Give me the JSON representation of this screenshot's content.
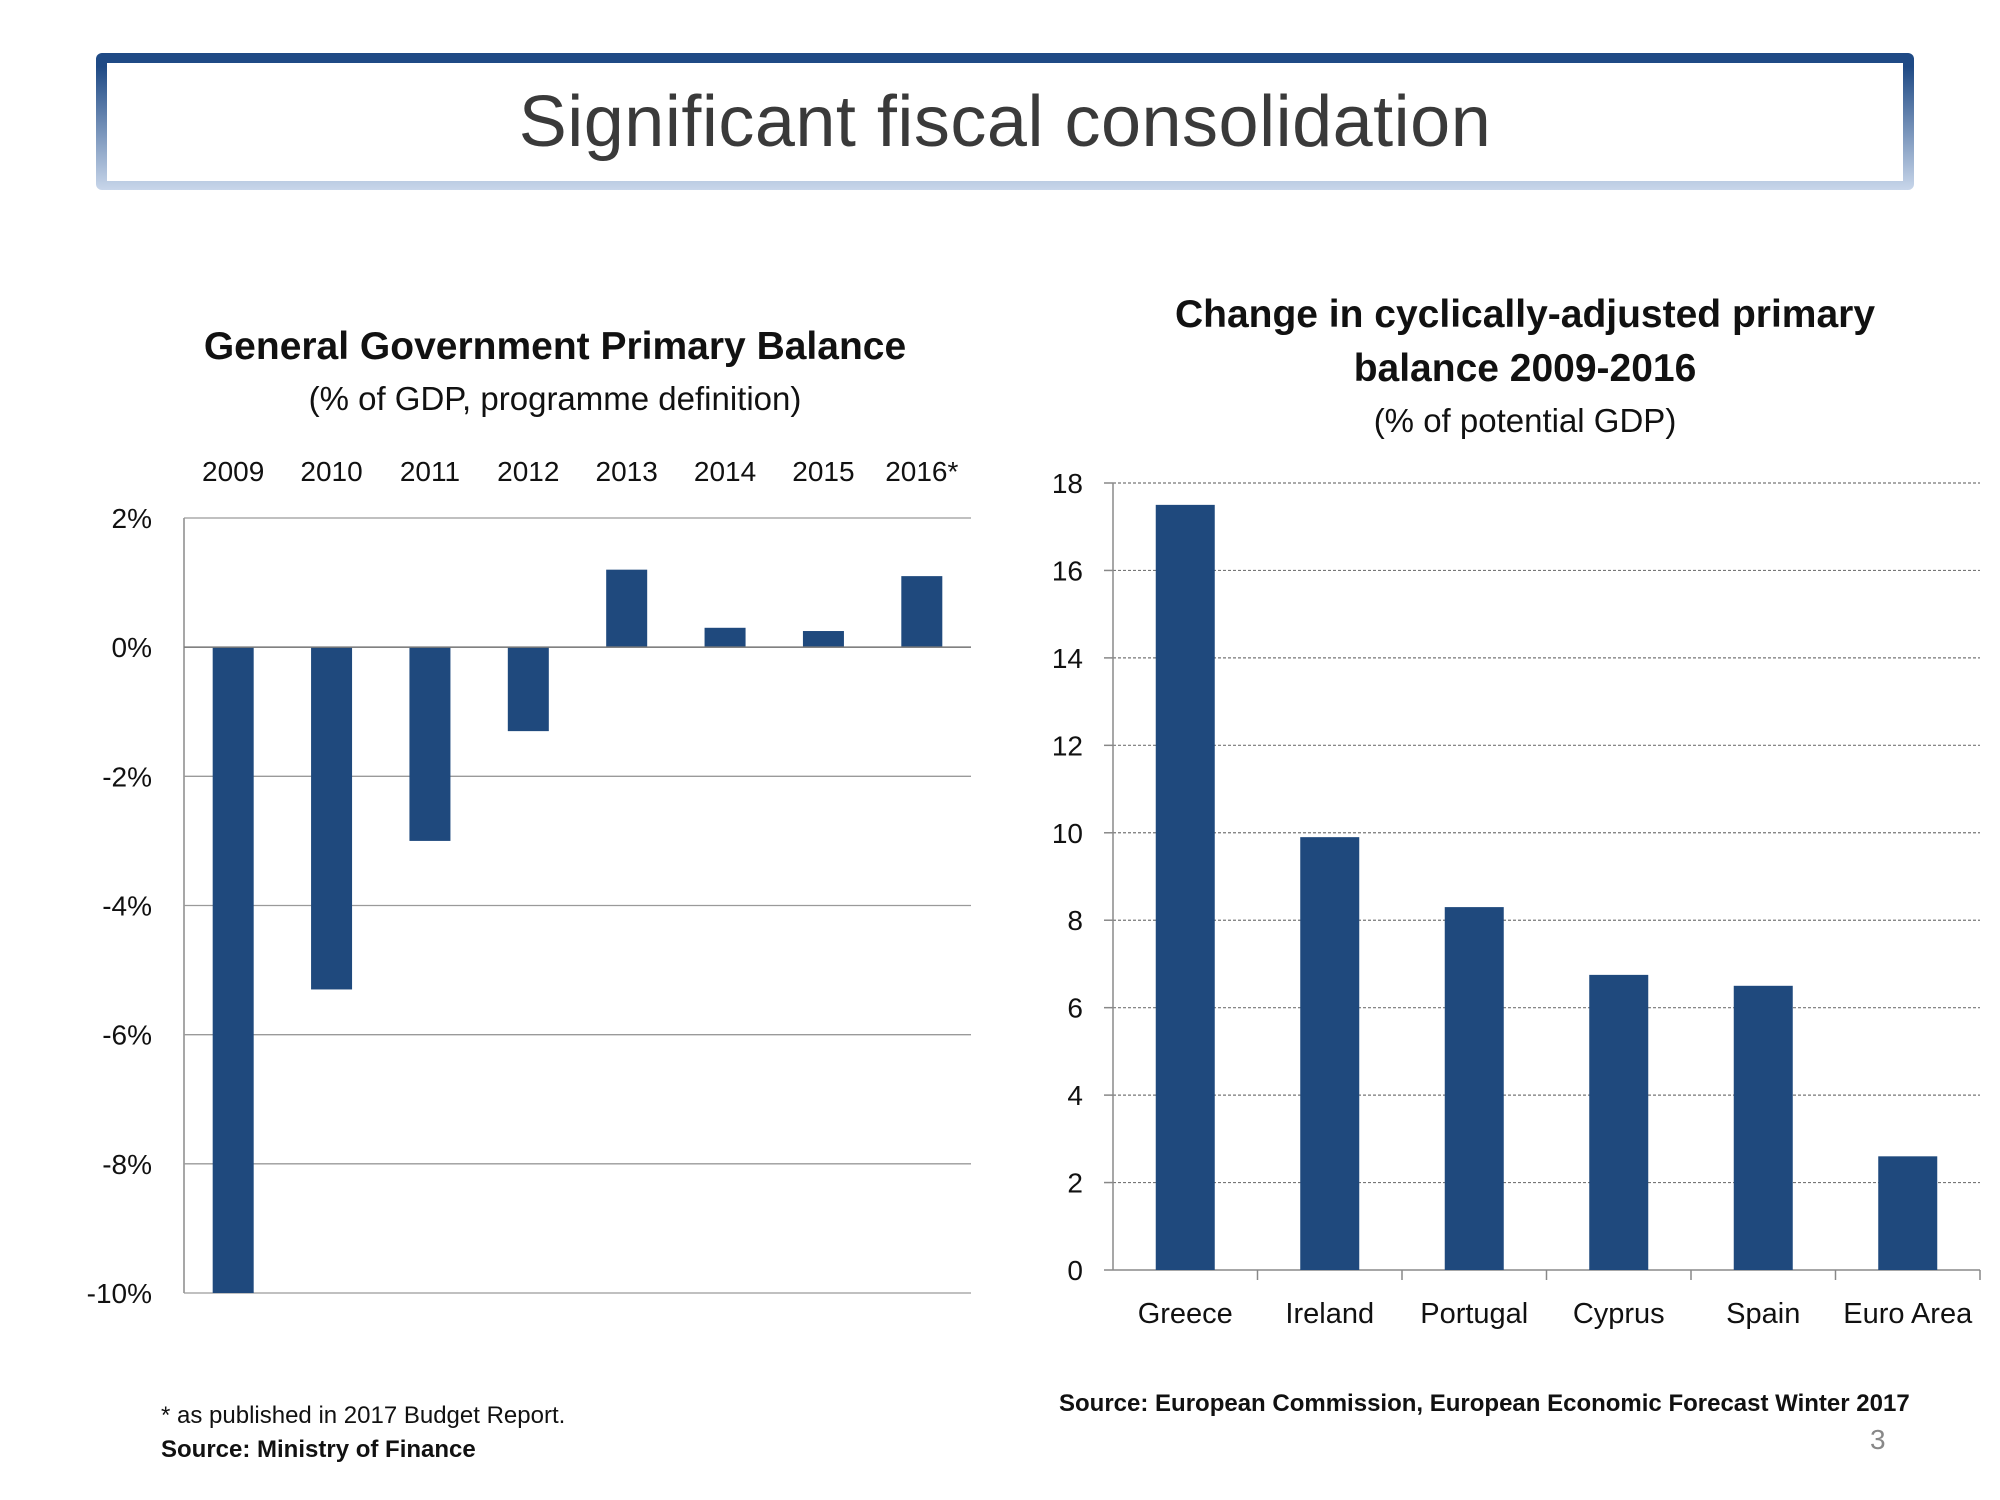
{
  "slide": {
    "title": "Significant fiscal consolidation",
    "page_number": "3"
  },
  "left_chart": {
    "title": "General Government Primary Balance",
    "subtitle": "(% of GDP, programme definition)",
    "footnote": "* as published in 2017 Budget Report.",
    "source": "Source: Ministry of Finance"
  },
  "right_chart": {
    "title_line1": "Change in cyclically-adjusted primary",
    "title_line2": "balance 2009-2016",
    "subtitle": "(% of potential GDP)",
    "source": "Source: European Commission, European Economic Forecast Winter 2017"
  },
  "colors": {
    "bar": "#1f497d",
    "title_border": "#1f4a85",
    "grid": "#9a9a9a"
  },
  "chart_data": [
    {
      "type": "bar",
      "title": "General Government Primary Balance",
      "subtitle": "(% of GDP, programme definition)",
      "categories": [
        "2009",
        "2010",
        "2011",
        "2012",
        "2013",
        "2014",
        "2015",
        "2016*"
      ],
      "values": [
        -10.1,
        -5.3,
        -3.0,
        -1.3,
        1.2,
        0.3,
        0.25,
        1.1
      ],
      "ylim": [
        -10,
        2
      ],
      "yticks": [
        2,
        0,
        -2,
        -4,
        -6,
        -8,
        -10
      ],
      "ytick_labels": [
        "2%",
        "0%",
        "-2%",
        "-4%",
        "-6%",
        "-8%",
        "-10%"
      ],
      "category_axis_position": "top",
      "grid": true
    },
    {
      "type": "bar",
      "title": "Change in cyclically-adjusted primary balance 2009-2016",
      "subtitle": "(% of potential GDP)",
      "categories": [
        "Greece",
        "Ireland",
        "Portugal",
        "Cyprus",
        "Spain",
        "Euro Area"
      ],
      "values": [
        17.5,
        9.9,
        8.3,
        6.75,
        6.5,
        2.6
      ],
      "ylim": [
        0,
        18
      ],
      "yticks": [
        0,
        2,
        4,
        6,
        8,
        10,
        12,
        14,
        16,
        18
      ],
      "grid": true
    }
  ]
}
